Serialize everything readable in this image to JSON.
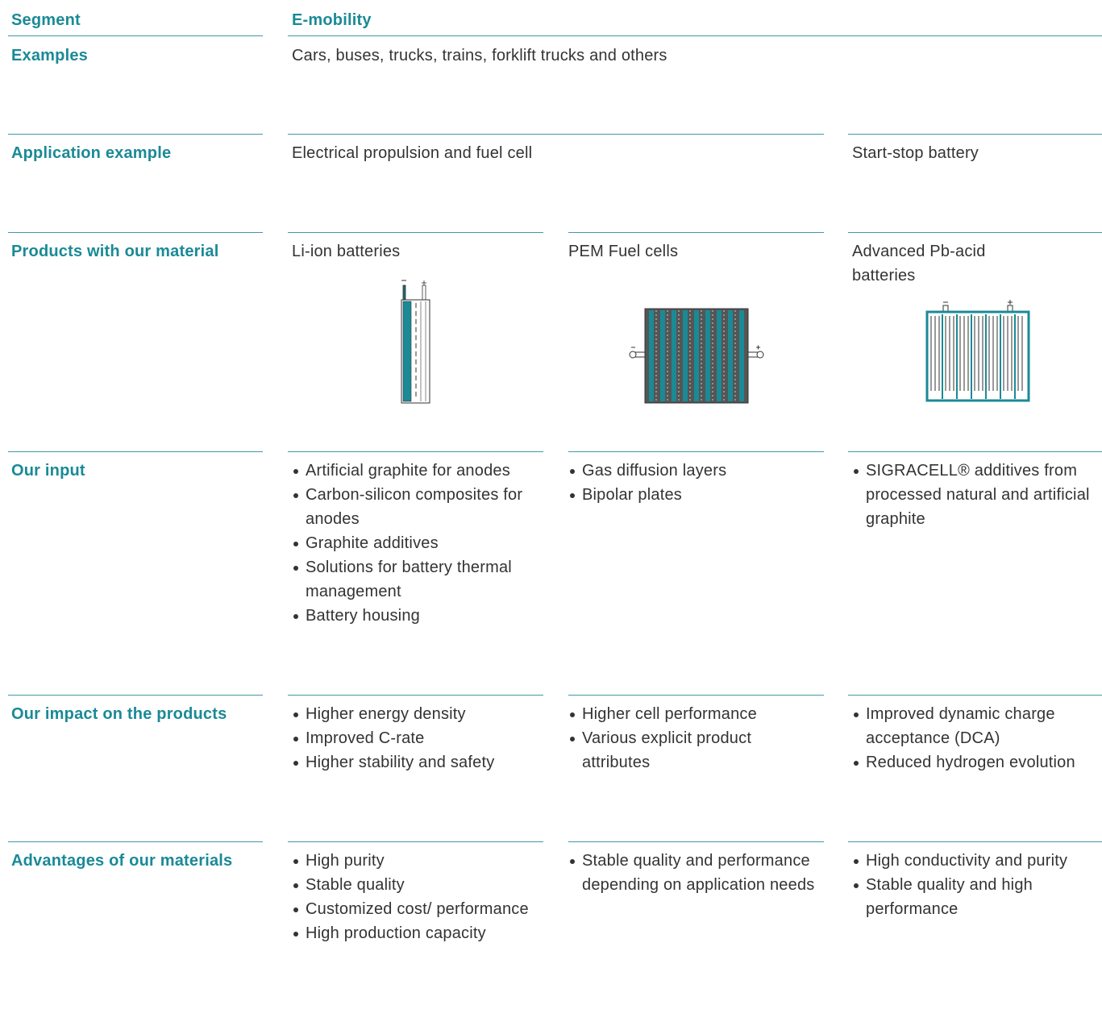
{
  "header": {
    "label": "Segment",
    "value": "E-mobility"
  },
  "rows": [
    {
      "label": "Examples",
      "cells": [
        "Cars, buses, trucks, trains, forklift trucks and others"
      ]
    },
    {
      "label": "Application example",
      "cells": [
        "Electrical propulsion and fuel cell",
        "Start-stop battery"
      ]
    },
    {
      "label": "Products with our material",
      "cells": [
        "Li-ion batteries",
        "PEM Fuel cells",
        "Advanced Pb-acid batteries"
      ]
    },
    {
      "label": "Our input",
      "cells": [
        [
          "Artificial graphite for anodes",
          "Carbon-silicon composites for anodes",
          "Graphite additives",
          "Solutions for battery thermal management",
          "Battery housing"
        ],
        [
          "Gas diffusion layers",
          "Bipolar plates"
        ],
        [
          "SIGRACELL® additives from processed natural and artificial graphite"
        ]
      ]
    },
    {
      "label": "Our impact on the products",
      "cells": [
        [
          "Higher energy density",
          "Improved C-rate",
          "Higher stability and safety"
        ],
        [
          "Higher cell performance",
          "Various explicit product attributes"
        ],
        [
          "Improved dynamic charge acceptance (DCA)",
          "Reduced hydrogen evolution"
        ]
      ]
    },
    {
      "label": "Advantages of our materials",
      "cells": [
        [
          "High purity",
          "Stable quality",
          "Customized cost/ performance",
          "High production capacity"
        ],
        [
          "Stable quality and performance depending on application needs"
        ],
        [
          "High conductivity and purity",
          "Stable quality and high performance"
        ]
      ]
    }
  ]
}
